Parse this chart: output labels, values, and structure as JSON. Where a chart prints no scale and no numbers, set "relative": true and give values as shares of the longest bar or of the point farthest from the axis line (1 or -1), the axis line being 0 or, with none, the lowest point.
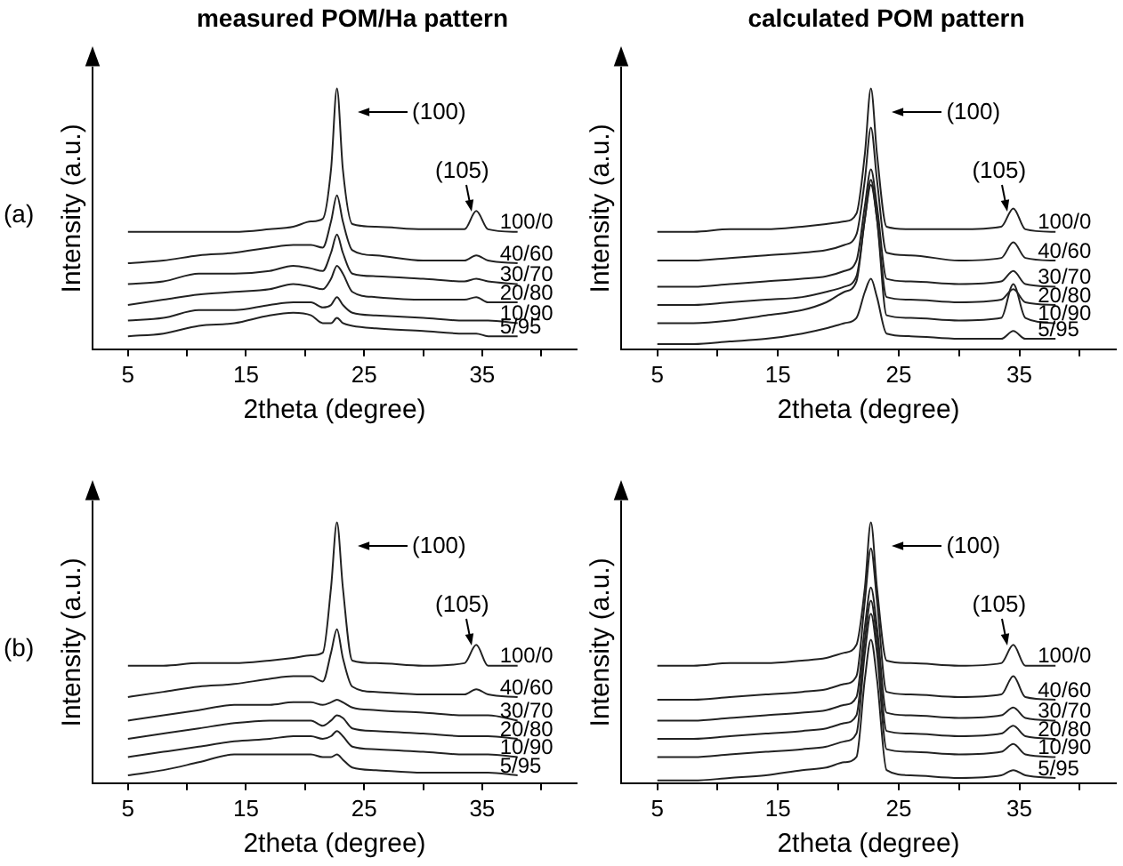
{
  "chart_data": [
    {
      "type": "line",
      "title": "measured POM/Ha pattern",
      "xlabel": "2theta (degree)",
      "ylabel": "Intensity (a.u.)",
      "relative": true,
      "xlim": [
        2,
        43
      ],
      "xticks": [
        5,
        {
          "value": 10,
          "label": null
        },
        15,
        {
          "value": 20,
          "label": null
        },
        25,
        {
          "value": 30,
          "label": null
        },
        35,
        {
          "value": 40,
          "label": null
        }
      ],
      "x": [
        5,
        8,
        11,
        14,
        17,
        19,
        20.5,
        21.5,
        22.2,
        22.7,
        23.2,
        24,
        26,
        30,
        33.5,
        34.5,
        35.5,
        38
      ],
      "marker": "none",
      "annotations": [
        "(a)",
        "(100)",
        "(105)"
      ],
      "series": [
        {
          "name": "100/0",
          "color": "#222222",
          "values": [
            0.45,
            0.45,
            0.45,
            0.45,
            0.46,
            0.47,
            0.49,
            0.5,
            0.69,
            1,
            0.69,
            0.48,
            0.47,
            0.46,
            0.46,
            0.53,
            0.46,
            0.45
          ]
        },
        {
          "name": "40/60",
          "color": "#222222",
          "values": [
            0.33,
            0.34,
            0.36,
            0.37,
            0.39,
            0.4,
            0.4,
            0.39,
            0.49,
            0.59,
            0.49,
            0.38,
            0.36,
            0.34,
            0.34,
            0.36,
            0.34,
            0.33
          ]
        },
        {
          "name": "30/70",
          "color": "#222222",
          "values": [
            0.25,
            0.26,
            0.29,
            0.29,
            0.3,
            0.32,
            0.31,
            0.3,
            0.37,
            0.44,
            0.37,
            0.29,
            0.28,
            0.27,
            0.26,
            0.27,
            0.26,
            0.25
          ]
        },
        {
          "name": "20/80",
          "color": "#222222",
          "values": [
            0.17,
            0.19,
            0.21,
            0.22,
            0.23,
            0.25,
            0.24,
            0.23,
            0.27,
            0.32,
            0.29,
            0.22,
            0.2,
            0.19,
            0.19,
            0.2,
            0.18,
            0.18
          ]
        },
        {
          "name": "10/90",
          "color": "#222222",
          "values": [
            0.11,
            0.12,
            0.15,
            0.15,
            0.17,
            0.18,
            0.18,
            0.16,
            0.17,
            0.2,
            0.17,
            0.14,
            0.13,
            0.12,
            0.11,
            0.11,
            0.11,
            0.1
          ]
        },
        {
          "name": "5/95",
          "color": "#222222",
          "values": [
            0.05,
            0.06,
            0.09,
            0.1,
            0.13,
            0.14,
            0.13,
            0.1,
            0.1,
            0.12,
            0.1,
            0.09,
            0.08,
            0.07,
            0.06,
            0.06,
            0.05,
            0.05
          ]
        }
      ]
    },
    {
      "type": "line",
      "title": "calculated POM pattern",
      "xlabel": "2theta (degree)",
      "ylabel": "Intensity (a.u.)",
      "relative": true,
      "xlim": [
        2,
        43
      ],
      "xticks": [
        5,
        {
          "value": 10,
          "label": null
        },
        15,
        {
          "value": 20,
          "label": null
        },
        25,
        {
          "value": 30,
          "label": null
        },
        35,
        {
          "value": 40,
          "label": null
        }
      ],
      "x": [
        5,
        8,
        11,
        14,
        17,
        19,
        20.5,
        21.5,
        22.2,
        22.7,
        23.2,
        24,
        26,
        30,
        33.5,
        34.5,
        35.5,
        38
      ],
      "marker": "none",
      "annotations": [
        "(100)",
        "(105)"
      ],
      "series": [
        {
          "name": "100/0",
          "color": "#222222",
          "values": [
            0.45,
            0.45,
            0.46,
            0.46,
            0.47,
            0.48,
            0.49,
            0.52,
            0.75,
            1,
            0.75,
            0.47,
            0.46,
            0.46,
            0.47,
            0.54,
            0.46,
            0.45
          ]
        },
        {
          "name": "40/60",
          "color": "#222222",
          "values": [
            0.34,
            0.34,
            0.35,
            0.36,
            0.37,
            0.38,
            0.4,
            0.44,
            0.65,
            0.85,
            0.65,
            0.37,
            0.36,
            0.34,
            0.35,
            0.41,
            0.35,
            0.34
          ]
        },
        {
          "name": "30/70",
          "color": "#222222",
          "values": [
            0.24,
            0.24,
            0.25,
            0.26,
            0.27,
            0.28,
            0.3,
            0.34,
            0.55,
            0.69,
            0.55,
            0.27,
            0.26,
            0.25,
            0.26,
            0.3,
            0.25,
            0.24
          ]
        },
        {
          "name": "20/80",
          "color": "#222222",
          "values": [
            0.17,
            0.17,
            0.18,
            0.19,
            0.2,
            0.22,
            0.24,
            0.28,
            0.5,
            0.65,
            0.5,
            0.2,
            0.19,
            0.18,
            0.19,
            0.23,
            0.18,
            0.17
          ]
        },
        {
          "name": "10/90",
          "color": "#222222",
          "values": [
            0.1,
            0.1,
            0.11,
            0.13,
            0.15,
            0.18,
            0.22,
            0.26,
            0.5,
            0.63,
            0.5,
            0.13,
            0.12,
            0.11,
            0.12,
            0.25,
            0.12,
            0.1
          ]
        },
        {
          "name": "5/95",
          "color": "#222222",
          "values": [
            0.02,
            0.02,
            0.03,
            0.04,
            0.06,
            0.08,
            0.1,
            0.12,
            0.22,
            0.27,
            0.2,
            0.06,
            0.05,
            0.04,
            0.04,
            0.07,
            0.04,
            0.04
          ]
        }
      ]
    },
    {
      "type": "line",
      "xlabel": "2theta (degree)",
      "ylabel": "Intensity (a.u.)",
      "relative": true,
      "xlim": [
        2,
        43
      ],
      "xticks": [
        5,
        {
          "value": 10,
          "label": null
        },
        15,
        {
          "value": 20,
          "label": null
        },
        25,
        {
          "value": 30,
          "label": null
        },
        35,
        {
          "value": 40,
          "label": null
        }
      ],
      "x": [
        5,
        8,
        11,
        14,
        17,
        19,
        20.5,
        21.5,
        22.2,
        22.7,
        23.2,
        24,
        26,
        30,
        33.5,
        34.5,
        35.5,
        38
      ],
      "marker": "none",
      "annotations": [
        "(b)",
        "(100)",
        "(105)"
      ],
      "series": [
        {
          "name": "100/0",
          "color": "#222222",
          "values": [
            0.45,
            0.45,
            0.46,
            0.46,
            0.47,
            0.48,
            0.49,
            0.5,
            0.75,
            1,
            0.75,
            0.47,
            0.46,
            0.45,
            0.46,
            0.53,
            0.45,
            0.45
          ]
        },
        {
          "name": "40/60",
          "color": "#222222",
          "values": [
            0.33,
            0.35,
            0.37,
            0.38,
            0.4,
            0.41,
            0.41,
            0.39,
            0.5,
            0.59,
            0.48,
            0.37,
            0.35,
            0.34,
            0.34,
            0.36,
            0.34,
            0.33
          ]
        },
        {
          "name": "30/70",
          "color": "#222222",
          "values": [
            0.24,
            0.26,
            0.28,
            0.3,
            0.3,
            0.31,
            0.31,
            0.3,
            0.31,
            0.32,
            0.31,
            0.29,
            0.28,
            0.27,
            0.26,
            0.26,
            0.26,
            0.24
          ]
        },
        {
          "name": "20/80",
          "color": "#222222",
          "values": [
            0.17,
            0.19,
            0.21,
            0.23,
            0.24,
            0.24,
            0.24,
            0.22,
            0.24,
            0.26,
            0.25,
            0.21,
            0.2,
            0.19,
            0.18,
            0.18,
            0.18,
            0.17
          ]
        },
        {
          "name": "10/90",
          "color": "#222222",
          "values": [
            0.1,
            0.12,
            0.14,
            0.16,
            0.17,
            0.18,
            0.18,
            0.17,
            0.18,
            0.2,
            0.18,
            0.14,
            0.13,
            0.12,
            0.11,
            0.11,
            0.11,
            0.1
          ]
        },
        {
          "name": "5/95",
          "color": "#222222",
          "values": [
            0.03,
            0.05,
            0.08,
            0.11,
            0.11,
            0.11,
            0.11,
            0.1,
            0.1,
            0.11,
            0.09,
            0.06,
            0.05,
            0.04,
            0.04,
            0.04,
            0.04,
            0.03
          ]
        }
      ]
    },
    {
      "type": "line",
      "xlabel": "2theta (degree)",
      "ylabel": "Intensity (a.u.)",
      "relative": true,
      "xlim": [
        2,
        43
      ],
      "xticks": [
        5,
        {
          "value": 10,
          "label": null
        },
        15,
        {
          "value": 20,
          "label": null
        },
        25,
        {
          "value": 30,
          "label": null
        },
        35,
        {
          "value": 40,
          "label": null
        }
      ],
      "x": [
        5,
        8,
        11,
        14,
        17,
        19,
        20.5,
        21.5,
        22.2,
        22.7,
        23.2,
        24,
        26,
        30,
        33.5,
        34.5,
        35.5,
        38
      ],
      "marker": "none",
      "annotations": [
        "(100)",
        "(105)"
      ],
      "series": [
        {
          "name": "100/0",
          "color": "#222222",
          "values": [
            0.45,
            0.45,
            0.46,
            0.46,
            0.47,
            0.48,
            0.5,
            0.53,
            0.75,
            1,
            0.75,
            0.47,
            0.46,
            0.45,
            0.46,
            0.53,
            0.45,
            0.45
          ]
        },
        {
          "name": "40/60",
          "color": "#222222",
          "values": [
            0.32,
            0.32,
            0.33,
            0.34,
            0.35,
            0.36,
            0.38,
            0.41,
            0.7,
            0.9,
            0.7,
            0.35,
            0.34,
            0.33,
            0.34,
            0.41,
            0.33,
            0.32
          ]
        },
        {
          "name": "30/70",
          "color": "#222222",
          "values": [
            0.24,
            0.24,
            0.25,
            0.26,
            0.27,
            0.28,
            0.3,
            0.33,
            0.6,
            0.75,
            0.6,
            0.27,
            0.26,
            0.25,
            0.26,
            0.29,
            0.25,
            0.24
          ]
        },
        {
          "name": "20/80",
          "color": "#222222",
          "values": [
            0.17,
            0.17,
            0.18,
            0.19,
            0.2,
            0.21,
            0.23,
            0.26,
            0.55,
            0.7,
            0.55,
            0.2,
            0.19,
            0.18,
            0.19,
            0.22,
            0.18,
            0.17
          ]
        },
        {
          "name": "10/90",
          "color": "#222222",
          "values": [
            0.1,
            0.1,
            0.11,
            0.12,
            0.13,
            0.14,
            0.16,
            0.19,
            0.5,
            0.65,
            0.5,
            0.13,
            0.12,
            0.11,
            0.12,
            0.15,
            0.11,
            0.1
          ]
        },
        {
          "name": "5/95",
          "color": "#222222",
          "values": [
            0.01,
            0.01,
            0.02,
            0.03,
            0.05,
            0.06,
            0.08,
            0.1,
            0.4,
            0.55,
            0.4,
            0.05,
            0.03,
            0.02,
            0.03,
            0.05,
            0.03,
            0.02
          ]
        }
      ]
    }
  ]
}
